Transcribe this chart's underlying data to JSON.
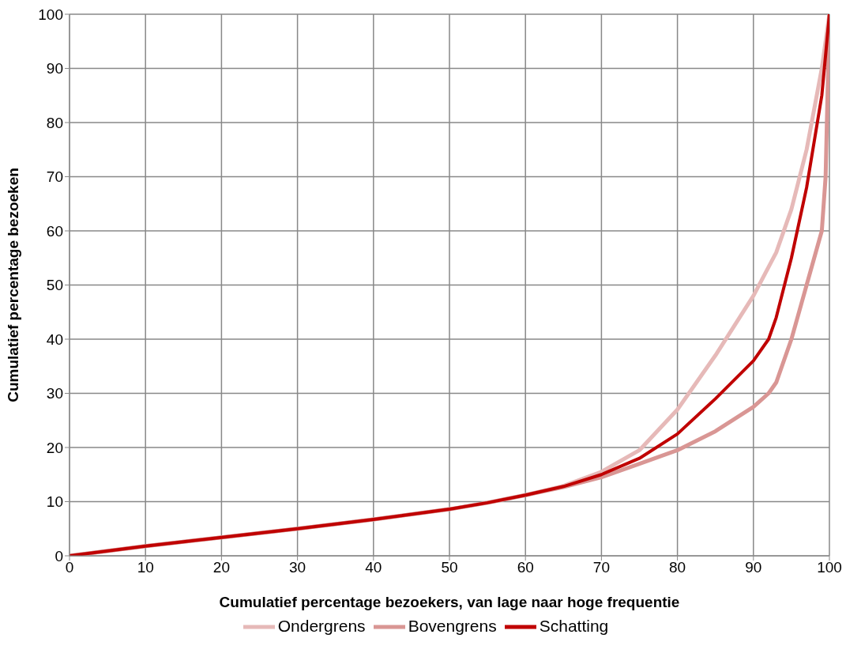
{
  "chart_data": {
    "type": "line",
    "xlabel": "Cumulatief percentage bezoekers, van lage naar hoge frequentie",
    "ylabel": "Cumulatief percentage bezoeken",
    "xlim": [
      0,
      100
    ],
    "xticks": [
      0,
      10,
      20,
      30,
      40,
      50,
      60,
      70,
      80,
      90,
      100
    ],
    "ylim": [
      0,
      100
    ],
    "yticks": [
      0,
      10,
      20,
      30,
      40,
      50,
      60,
      70,
      80,
      90,
      100
    ],
    "grid": true,
    "legend": "bottom",
    "marker": "none",
    "line_style": "solid",
    "series": [
      {
        "name": "Ondergrens",
        "color": "#e6b9b8",
        "x": [
          0,
          10,
          20,
          30,
          40,
          50,
          55,
          60,
          65,
          70,
          75,
          80,
          85,
          90,
          93,
          95,
          97,
          99,
          100
        ],
        "values": [
          0,
          1.8,
          3.4,
          5.0,
          6.7,
          8.6,
          9.8,
          11.2,
          12.9,
          15.5,
          19.5,
          27,
          37,
          48,
          56,
          64,
          75,
          90,
          100
        ]
      },
      {
        "name": "Bovengrens",
        "color": "#d99694",
        "x": [
          0,
          10,
          20,
          30,
          40,
          50,
          55,
          60,
          65,
          70,
          75,
          80,
          85,
          90,
          92,
          93,
          95,
          97,
          98,
          99,
          99.5,
          100
        ],
        "values": [
          0,
          1.8,
          3.4,
          5.0,
          6.7,
          8.6,
          9.8,
          11.2,
          12.7,
          14.5,
          17,
          19.5,
          23,
          27.5,
          30,
          32,
          40,
          50,
          55,
          60,
          70,
          100
        ]
      },
      {
        "name": "Schatting",
        "color": "#c00000",
        "x": [
          0,
          10,
          20,
          30,
          40,
          50,
          55,
          60,
          65,
          70,
          75,
          80,
          85,
          90,
          92,
          93,
          95,
          97,
          99,
          100
        ],
        "values": [
          0,
          1.8,
          3.4,
          5.0,
          6.7,
          8.6,
          9.8,
          11.2,
          12.8,
          15,
          18,
          22.5,
          29,
          36,
          40,
          44,
          55,
          68,
          85,
          100
        ]
      }
    ]
  }
}
